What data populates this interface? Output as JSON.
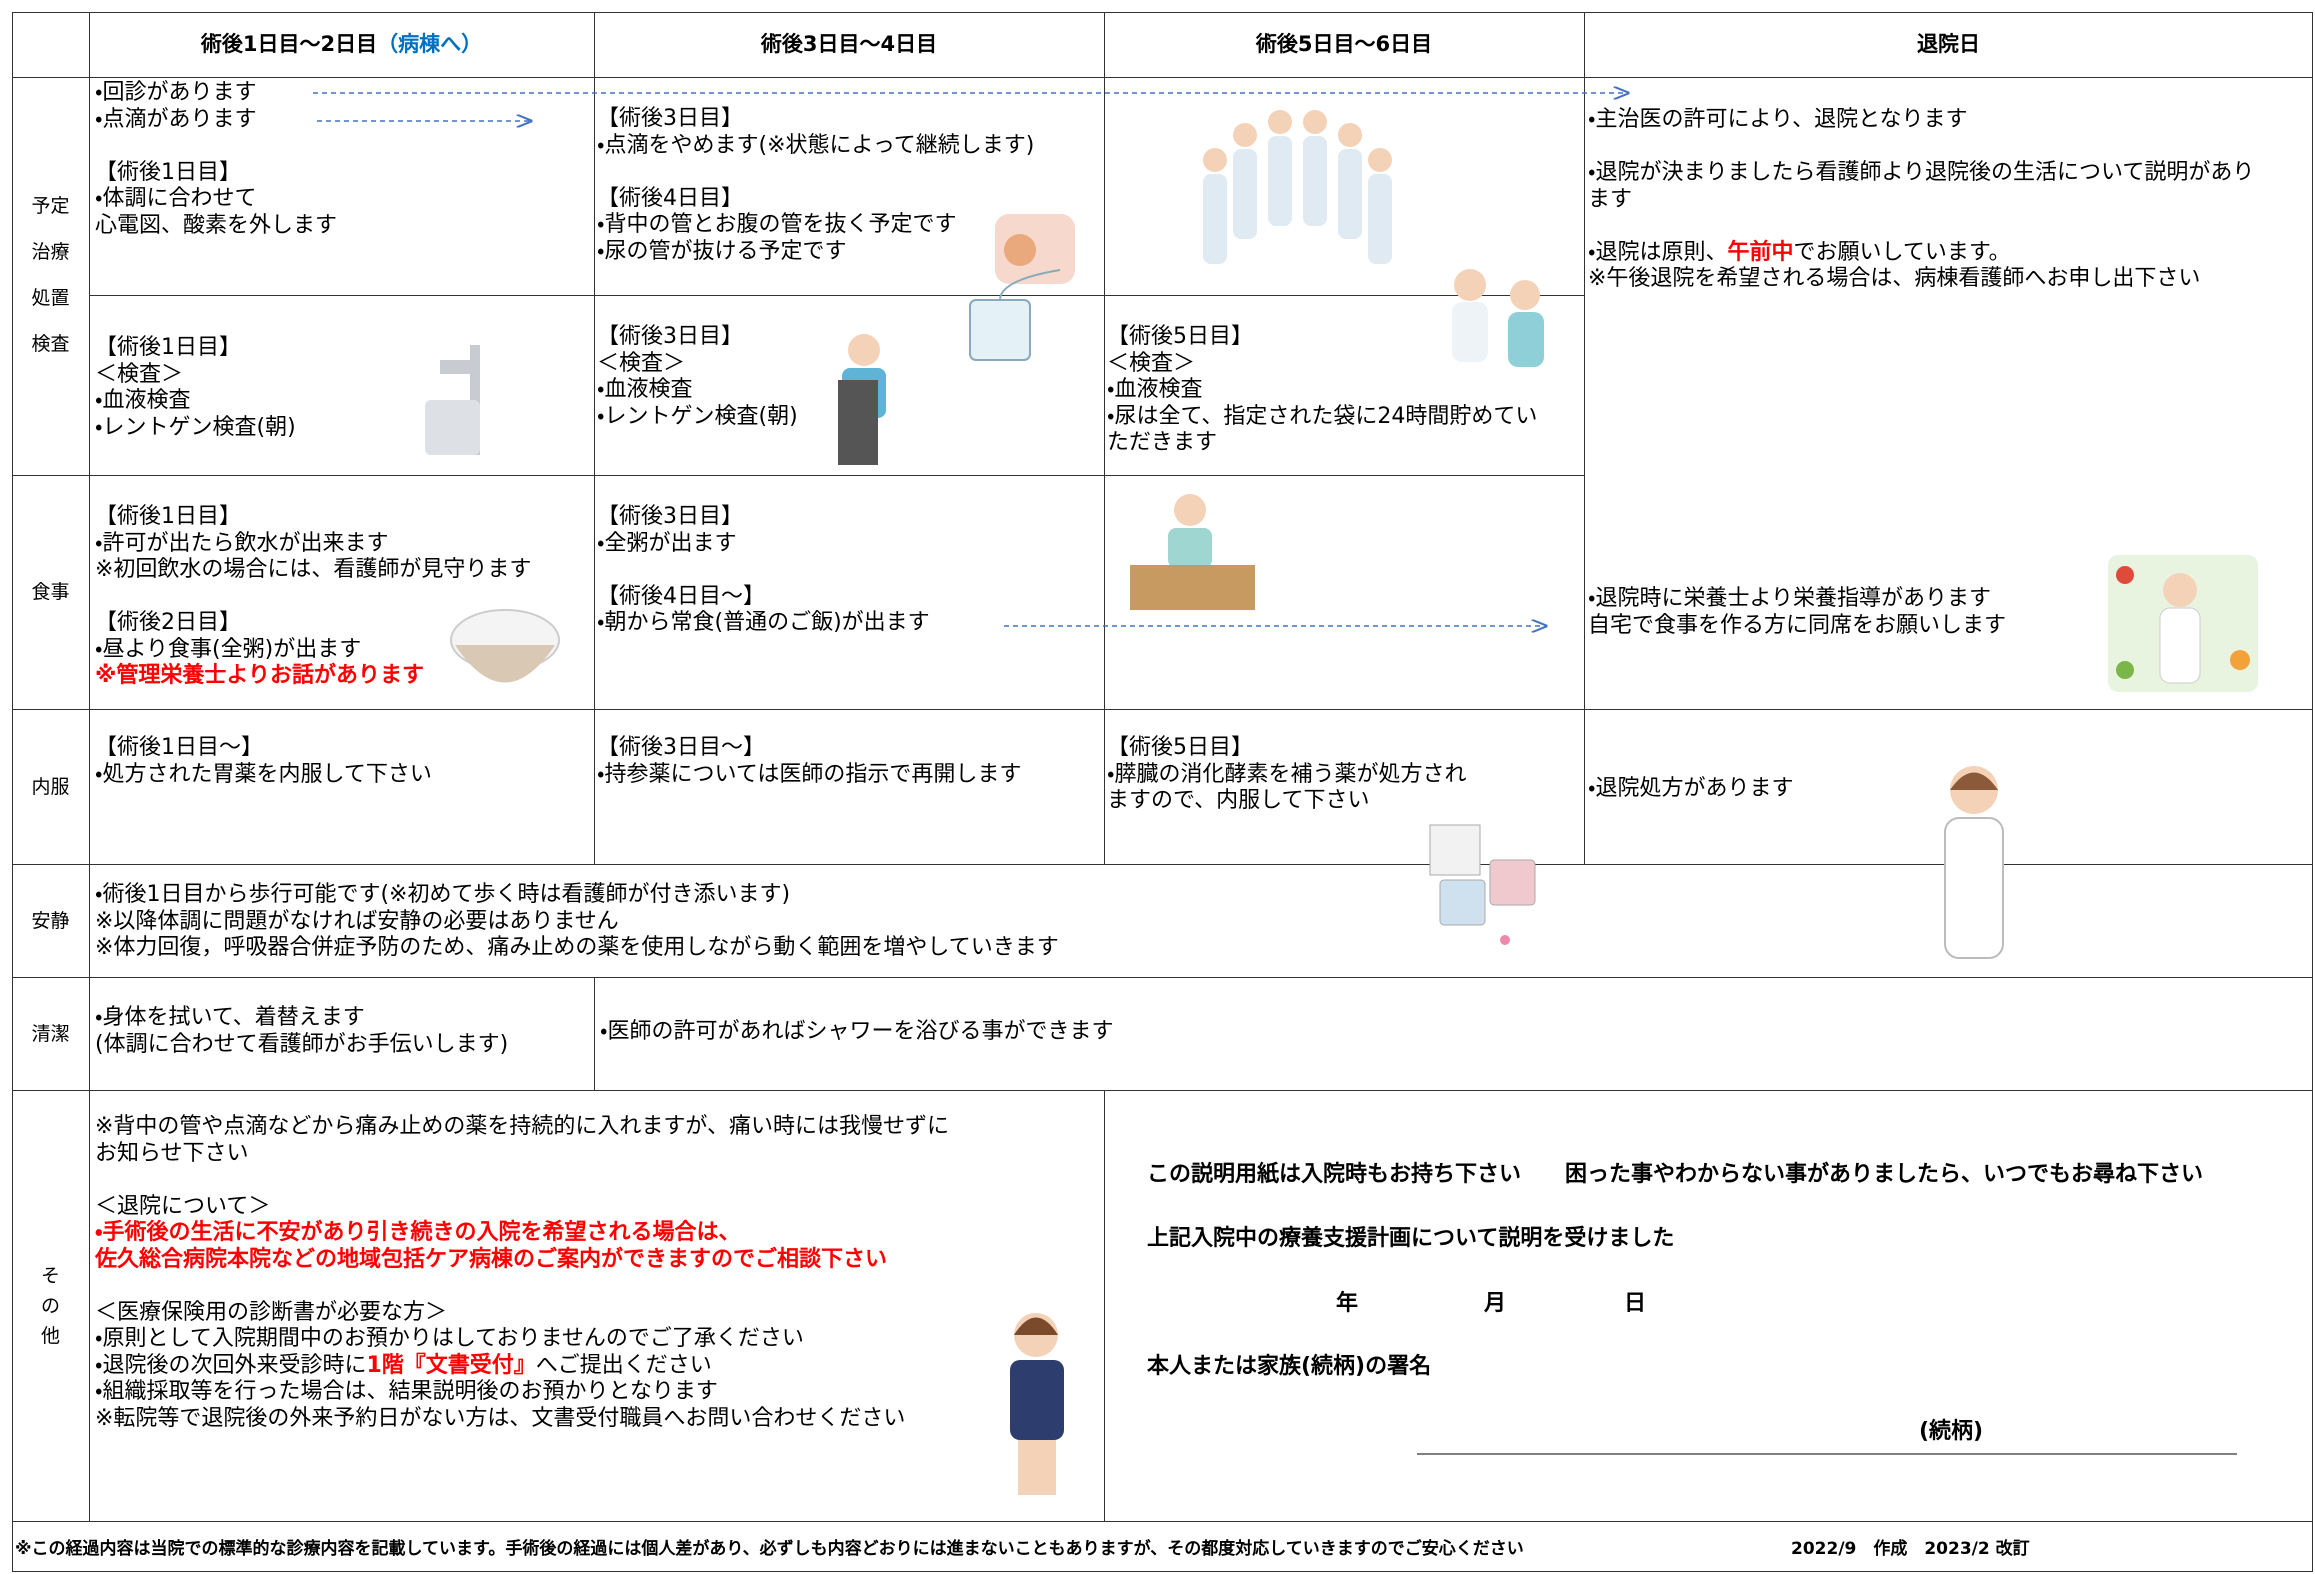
{
  "header": {
    "columns": [
      "術後1日目～2日目",
      "術後3日目～4日目",
      "術後5日目～6日目",
      "退院日"
    ],
    "ward_note": "（病棟へ）"
  },
  "row_labels": {
    "plan": [
      "予定",
      "治療",
      "処置",
      "検査"
    ],
    "meal": "食事",
    "medicine": "内服",
    "rest": "安静",
    "hygiene": "清潔",
    "other": [
      "そ",
      "の",
      "他"
    ]
  },
  "plan": {
    "day1_2": [
      "・回診があります",
      "・点滴があります",
      "【術後1日目】",
      "・体調に合わせて",
      "心電図、酸素を外します"
    ],
    "day3_4": [
      "【術後3日目】",
      "・点滴をやめます(※状態によって継続します)",
      "【術後4日目】",
      "・背中の管とお腹の管を抜く予定です",
      "・尿の管が抜ける予定です"
    ],
    "discharge": [
      "・主治医の許可により、退院となります",
      "・退院が決まりましたら看護師より退院後の生活について説明があり",
      "ます",
      [
        "・退院は原則、",
        "午前中",
        "でお願いしています。"
      ],
      "※午後退院を希望される場合は、病棟看護師へお申し出下さい"
    ]
  },
  "exam": {
    "day1_2": [
      "【術後1日目】",
      "＜検査＞",
      "・血液検査",
      "・レントゲン検査(朝)"
    ],
    "day3_4": [
      "【術後3日目】",
      "＜検査＞",
      "・血液検査",
      "・レントゲン検査(朝)"
    ],
    "day5_6": [
      "【術後5日目】",
      "＜検査＞",
      "・血液検査",
      "・尿は全て、指定された袋に24時間貯めてい",
      "ただきます"
    ]
  },
  "meal": {
    "day1_2": [
      "【術後1日目】",
      "・許可が出たら飲水が出来ます",
      "※初回飲水の場合には、看護師が見守ります",
      "【術後2日目】",
      "・昼より食事(全粥)が出ます",
      "※管理栄養士よりお話があります"
    ],
    "day3_4": [
      "【術後3日目】",
      "・全粥が出ます",
      "【術後4日目～】",
      "・朝から常食(普通のご飯)が出ます"
    ],
    "discharge": [
      "・退院時に栄養士より栄養指導があります",
      "自宅で食事を作る方に同席をお願いします"
    ]
  },
  "medicine": {
    "day1_2": [
      "【術後1日目～】",
      "・処方された胃薬を内服して下さい"
    ],
    "day3_4": [
      "【術後3日目～】",
      "・持参薬については医師の指示で再開します"
    ],
    "day5_6": [
      "【術後5日目】",
      "・膵臓の消化酵素を補う薬が処方され",
      "ますので、内服して下さい"
    ],
    "discharge": [
      "・退院処方があります"
    ]
  },
  "rest": [
    "・術後1日目から歩行可能です(※初めて歩く時は看護師が付き添います)",
    "※以降体調に問題がなければ安静の必要はありません",
    "※体力回復，呼吸器合併症予防のため、痛み止めの薬を使用しながら動く範囲を増やしていきます"
  ],
  "hygiene": {
    "day1_2": [
      "・身体を拭いて、着替えます",
      "(体調に合わせて看護師がお手伝いします)"
    ],
    "day3_6": "・医師の許可があればシャワーを浴びる事ができます"
  },
  "other": {
    "notes": [
      "※背中の管や点滴などから痛み止めの薬を持続的に入れますが、痛い時には我慢せずに",
      "お知らせ下さい",
      "＜退院について＞",
      "・手術後の生活に不安があり引き続きの入院を希望される場合は、",
      "佐久総合病院本院などの地域包括ケア病棟のご案内ができますのでご相談下さい",
      "＜医療保険用の診断書が必要な方＞",
      "・原則として入院期間中のお預かりはしておりませんのでご了承ください",
      [
        "・退院後の次回外来受診時に",
        "1階『文書受付』",
        "へご提出ください"
      ],
      "・組織採取等を行った場合は、結果説明後のお預かりとなります",
      "※転院等で退院後の外来予約日がない方は、文書受付職員へお問い合わせください"
    ],
    "signature": {
      "notice": "この説明用紙は入院時もお持ち下さい　　困った事やわからない事がありましたら、いつでもお尋ね下さい",
      "confirm": "上記入院中の療養支援計画について説明を受けました",
      "year": "年",
      "month": "月",
      "day": "日",
      "sign": "本人または家族(続柄)の署名",
      "relation": "(続柄)"
    }
  },
  "footer": {
    "note": "※この経過内容は当院での標準的な診療内容を記載しています。手術後の経過には個人差があり、必ずしも内容どおりには進まないこともありますが、その都度対応していきますのでご安心ください",
    "revision": "2022/9　作成　2023/2 改訂"
  }
}
